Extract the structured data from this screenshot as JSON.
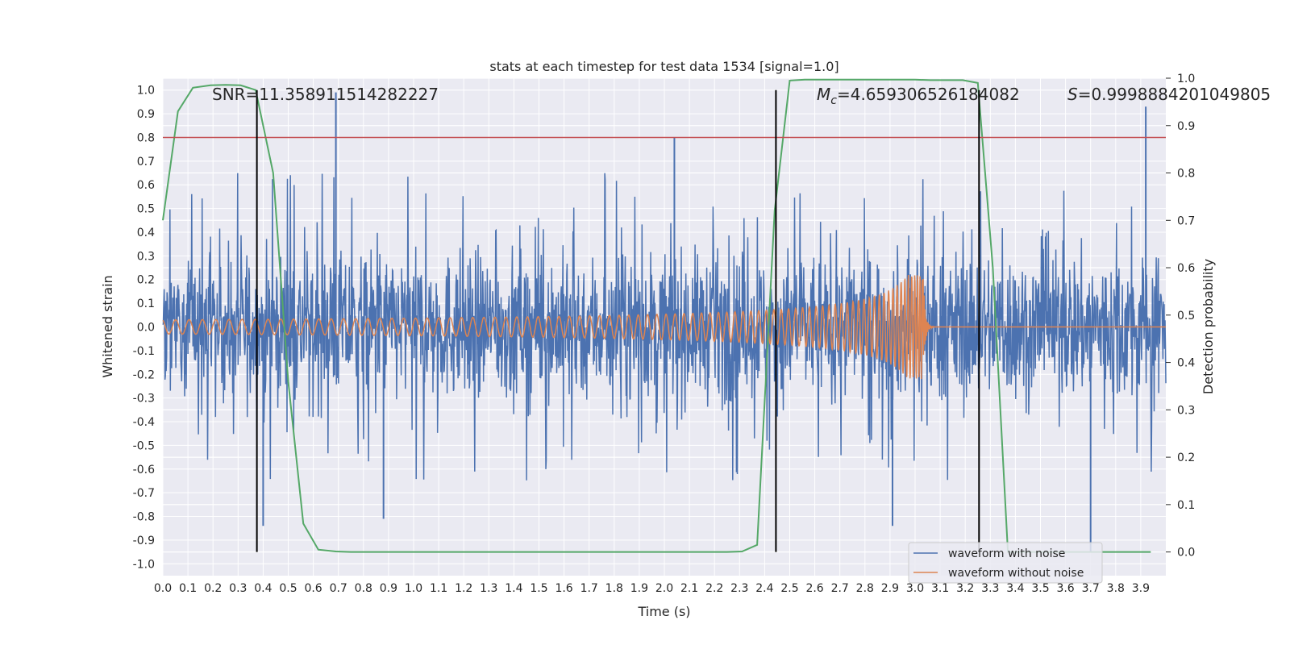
{
  "chart_data": {
    "type": "line",
    "title": "stats at each timestep for test data 1534 [signal=1.0]",
    "xlabel": "Time (s)",
    "ylabel": "Whitened strain",
    "y2label": "Detection probability",
    "xlim": [
      0.0,
      4.0
    ],
    "ylim": [
      -1.05,
      1.05
    ],
    "y2lim": [
      -0.05,
      1.0
    ],
    "x_ticks": [
      "0.0",
      "0.1",
      "0.2",
      "0.3",
      "0.4",
      "0.5",
      "0.6",
      "0.7",
      "0.8",
      "0.9",
      "1.0",
      "1.1",
      "1.2",
      "1.3",
      "1.4",
      "1.5",
      "1.6",
      "1.7",
      "1.8",
      "1.9",
      "2.0",
      "2.1",
      "2.2",
      "2.3",
      "2.4",
      "2.5",
      "2.6",
      "2.7",
      "2.8",
      "2.9",
      "3.0",
      "3.1",
      "3.2",
      "3.3",
      "3.4",
      "3.5",
      "3.6",
      "3.7",
      "3.8",
      "3.9"
    ],
    "y_ticks": [
      "1.0",
      "0.9",
      "0.8",
      "0.7",
      "0.6",
      "0.5",
      "0.4",
      "0.3",
      "0.2",
      "0.1",
      "0.0",
      "-0.1",
      "-0.2",
      "-0.3",
      "-0.4",
      "-0.5",
      "-0.6",
      "-0.7",
      "-0.8",
      "-0.9",
      "-1.0"
    ],
    "y2_ticks": [
      "1.0",
      "0.9",
      "0.8",
      "0.7",
      "0.6",
      "0.5",
      "0.4",
      "0.3",
      "0.2",
      "0.1",
      "0.0"
    ],
    "grid": true,
    "legend_placement": "lower-right",
    "annotations": {
      "snr": "SNR=11.358911514282227",
      "mc_symbol": "M",
      "mc_subscript": "c",
      "mc_value": "=4.659306526184082",
      "s_symbol": "S",
      "s_value": "=0.9998884201049805"
    },
    "threshold_y": 0.8,
    "vertical_lines_x": [
      0.375,
      2.445,
      3.255
    ],
    "series": [
      {
        "name": "waveform with noise",
        "color": "#4c72b0",
        "description_values": "noise-dominated strain, envelope about ±0.45 with spikes up to ±1.0",
        "spikes": [
          [
            0.69,
            0.99
          ],
          [
            2.04,
            0.8
          ],
          [
            3.92,
            0.93
          ],
          [
            0.88,
            -0.81
          ],
          [
            3.7,
            -0.95
          ],
          [
            2.91,
            -0.84
          ],
          [
            0.4,
            -0.84
          ]
        ]
      },
      {
        "name": "waveform without noise",
        "color": "#dd8452",
        "chirp": {
          "start": 0.0,
          "merger": 3.03,
          "ringdown_end": 3.12,
          "amp_start": 0.03,
          "amp_peak_pos": 0.22,
          "amp_peak_neg": -0.28
        }
      },
      {
        "name": "detection probability",
        "color": "#55a868",
        "axis": "right",
        "x": [
          0.0,
          0.06,
          0.12,
          0.19,
          0.25,
          0.31,
          0.37,
          0.44,
          0.5,
          0.56,
          0.62,
          0.69,
          0.75,
          0.81,
          0.87,
          0.94,
          1.0,
          1.06,
          1.12,
          1.19,
          1.25,
          1.31,
          1.37,
          1.44,
          1.5,
          1.56,
          1.62,
          1.69,
          1.75,
          1.81,
          1.87,
          1.94,
          2.0,
          2.06,
          2.12,
          2.19,
          2.25,
          2.31,
          2.37,
          2.44,
          2.5,
          2.56,
          2.62,
          2.69,
          2.75,
          2.81,
          2.87,
          2.94,
          3.0,
          3.06,
          3.12,
          3.19,
          3.25,
          3.31,
          3.37,
          3.44,
          3.5,
          3.56,
          3.62,
          3.69,
          3.75,
          3.81,
          3.87,
          3.94
        ],
        "values": [
          0.7,
          0.93,
          0.98,
          0.985,
          0.986,
          0.985,
          0.975,
          0.8,
          0.36,
          0.06,
          0.005,
          0.001,
          0.0,
          0.0,
          0.0,
          0.0,
          0.0,
          0.0,
          0.0,
          0.0,
          0.0,
          0.0,
          0.0,
          0.0,
          0.0,
          0.0,
          0.0,
          0.0,
          0.0,
          0.0,
          0.0,
          0.0,
          0.0,
          0.0,
          0.0,
          0.0,
          0.0,
          0.001,
          0.015,
          0.72,
          0.995,
          0.997,
          0.997,
          0.997,
          0.997,
          0.997,
          0.997,
          0.997,
          0.997,
          0.996,
          0.996,
          0.996,
          0.99,
          0.6,
          0.0,
          0.0,
          0.0,
          0.0,
          0.0,
          0.0,
          0.0,
          0.0,
          0.0,
          0.0
        ]
      }
    ]
  }
}
